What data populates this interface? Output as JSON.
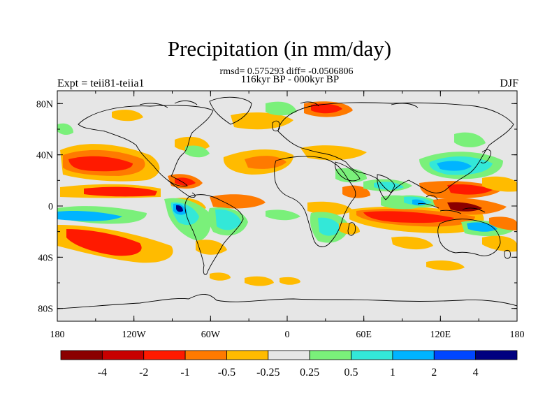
{
  "title": "Precipitation (in mm/day)",
  "stats": "rmsd= 0.575293 diff= -0.0506806",
  "period": "116kyr BP - 000kyr BP",
  "experiment": "Expt = teii81-teiia1",
  "season": "DJF",
  "map": {
    "lon_range": [
      -180,
      180
    ],
    "lat_range": [
      -90,
      90
    ],
    "x_ticks": [
      "180",
      "120W",
      "60W",
      "0",
      "60E",
      "120E",
      "180"
    ],
    "y_ticks": [
      "80N",
      "40N",
      "0",
      "40S",
      "80S"
    ],
    "background_color": "#e6e6e6"
  },
  "colorbar": {
    "colors": [
      "#8b0000",
      "#c80000",
      "#ff1a00",
      "#ff7a00",
      "#ffbb00",
      "#e6e6e6",
      "#7af07a",
      "#33e8d8",
      "#00b4ff",
      "#0046ff",
      "#000080"
    ],
    "labels": [
      "-4",
      "-2",
      "-1",
      "-0.5",
      "-0.25",
      "0.25",
      "0.5",
      "1",
      "2",
      "4"
    ]
  }
}
